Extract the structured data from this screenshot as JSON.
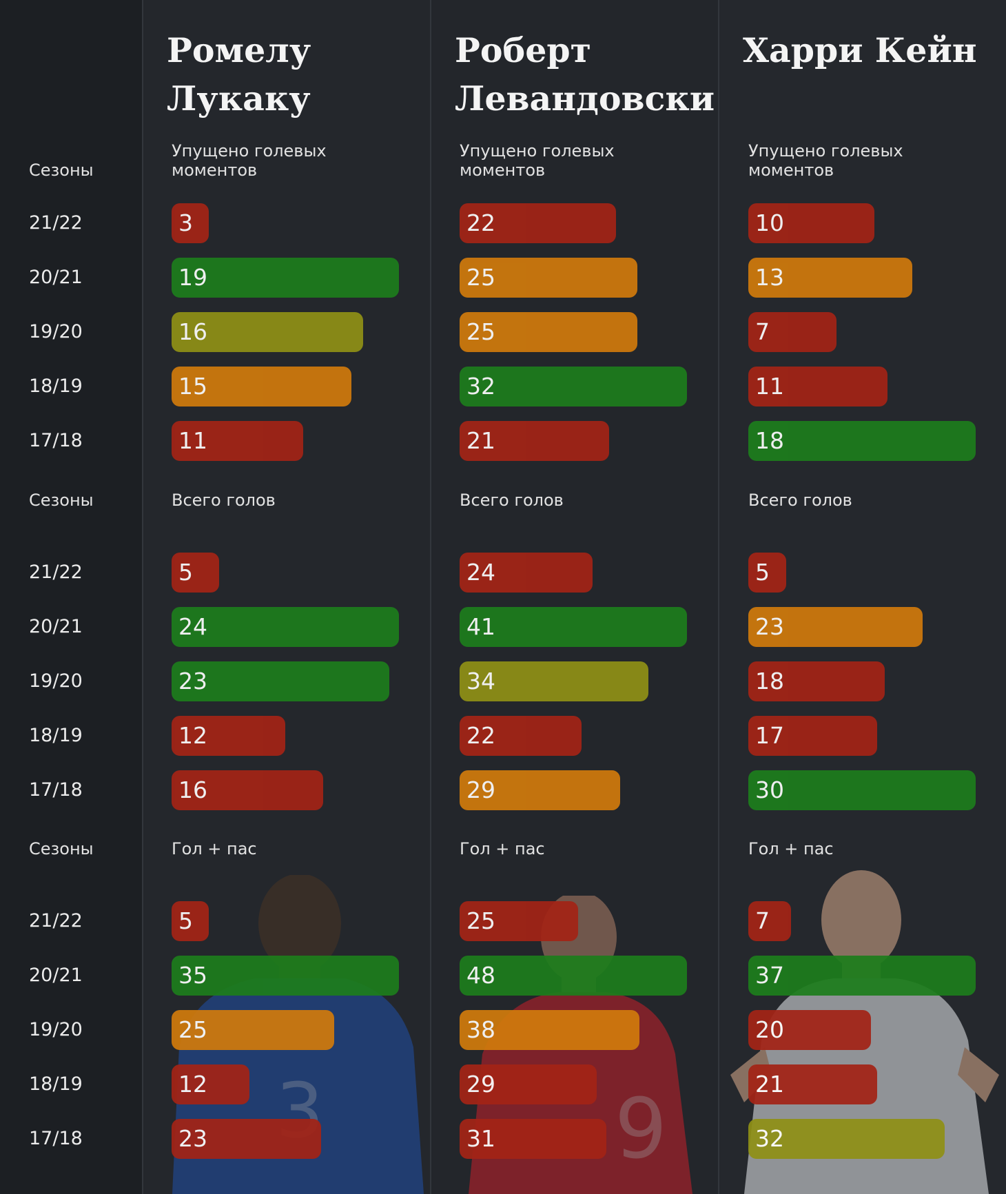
{
  "labels": {
    "seasons_header": "Сезоны"
  },
  "seasons": [
    "21/22",
    "20/21",
    "19/20",
    "18/19",
    "17/18"
  ],
  "colors": {
    "red": "#a32416",
    "orange": "#d07a0c",
    "olive": "#8f9016",
    "green": "#1d7d1c",
    "background": "#1f2227"
  },
  "players": [
    {
      "name": "Ромелу\nЛукаку"
    },
    {
      "name": "Роберт\nЛевандовски"
    },
    {
      "name": "Харри Кейн"
    }
  ],
  "chart_data": [
    {
      "type": "bar",
      "title": "Упущено голевых моментов",
      "categories": [
        "21/22",
        "20/21",
        "19/20",
        "18/19",
        "17/18"
      ],
      "series": [
        {
          "name": "Ромелу Лукаку",
          "values": [
            3,
            19,
            16,
            15,
            11
          ],
          "colors": [
            "red",
            "green",
            "olive",
            "orange",
            "red"
          ]
        },
        {
          "name": "Роберт Левандовски",
          "values": [
            22,
            25,
            25,
            32,
            21
          ],
          "colors": [
            "red",
            "orange",
            "orange",
            "green",
            "red"
          ]
        },
        {
          "name": "Харри Кейн",
          "values": [
            10,
            13,
            7,
            11,
            18
          ],
          "colors": [
            "red",
            "orange",
            "red",
            "red",
            "green"
          ]
        }
      ]
    },
    {
      "type": "bar",
      "title": "Всего голов",
      "categories": [
        "21/22",
        "20/21",
        "19/20",
        "18/19",
        "17/18"
      ],
      "series": [
        {
          "name": "Ромелу Лукаку",
          "values": [
            5,
            24,
            23,
            12,
            16
          ],
          "colors": [
            "red",
            "green",
            "green",
            "red",
            "red"
          ]
        },
        {
          "name": "Роберт Левандовски",
          "values": [
            24,
            41,
            34,
            22,
            29
          ],
          "colors": [
            "red",
            "green",
            "olive",
            "red",
            "orange"
          ]
        },
        {
          "name": "Харри Кейн",
          "values": [
            5,
            23,
            18,
            17,
            30
          ],
          "colors": [
            "red",
            "orange",
            "red",
            "red",
            "green"
          ]
        }
      ]
    },
    {
      "type": "bar",
      "title": "Гол + пас",
      "categories": [
        "21/22",
        "20/21",
        "19/20",
        "18/19",
        "17/18"
      ],
      "series": [
        {
          "name": "Ромелу Лукаку",
          "values": [
            5,
            35,
            25,
            12,
            23
          ],
          "colors": [
            "red",
            "green",
            "orange",
            "red",
            "red"
          ]
        },
        {
          "name": "Роберт Левандовски",
          "values": [
            25,
            48,
            38,
            29,
            31
          ],
          "colors": [
            "red",
            "green",
            "orange",
            "red",
            "red"
          ]
        },
        {
          "name": "Харри Кейн",
          "values": [
            7,
            37,
            20,
            21,
            32
          ],
          "colors": [
            "red",
            "green",
            "red",
            "red",
            "olive"
          ]
        }
      ]
    }
  ]
}
